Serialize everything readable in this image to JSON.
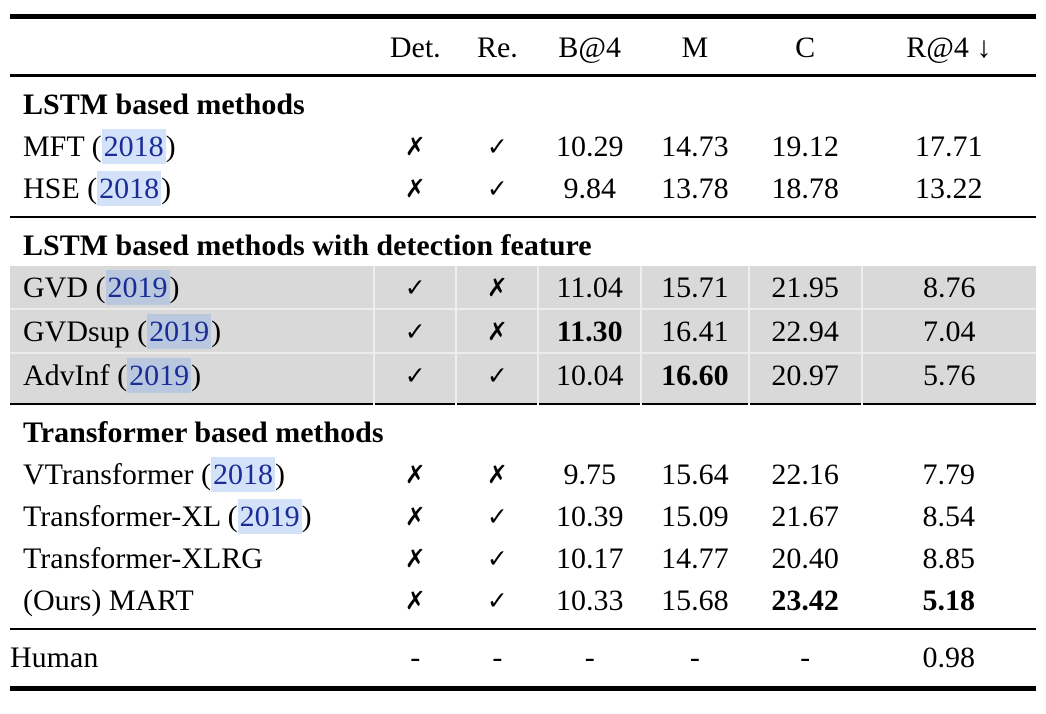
{
  "colors": {
    "link_text": "#1a2c96",
    "link_highlight": "rgba(120,165,235,0.32)",
    "row_shade": "#d9d9d9",
    "rule": "#000000"
  },
  "table": {
    "header": {
      "method": "",
      "det": "Det.",
      "re": "Re.",
      "b4": "B@4",
      "m": "M",
      "c": "C",
      "r4": "R@4 ↓"
    },
    "glyphs": {
      "yes": "✓",
      "no": "✗"
    },
    "sections": [
      {
        "title": "LSTM based methods",
        "shaded": false,
        "rows": [
          {
            "name": "MFT",
            "cite_year": "2018",
            "det": false,
            "re": true,
            "values": [
              "10.29",
              "14.73",
              "19.12",
              "17.71"
            ],
            "bold": [
              false,
              false,
              false,
              false
            ]
          },
          {
            "name": "HSE",
            "cite_year": "2018",
            "det": false,
            "re": true,
            "values": [
              "9.84",
              "13.78",
              "18.78",
              "13.22"
            ],
            "bold": [
              false,
              false,
              false,
              false
            ]
          }
        ]
      },
      {
        "title": "LSTM based methods with detection feature",
        "shaded": true,
        "rows": [
          {
            "name": "GVD",
            "cite_year": "2019",
            "det": true,
            "re": false,
            "values": [
              "11.04",
              "15.71",
              "21.95",
              "8.76"
            ],
            "bold": [
              false,
              false,
              false,
              false
            ]
          },
          {
            "name": "GVDsup",
            "cite_year": "2019",
            "det": true,
            "re": false,
            "values": [
              "11.30",
              "16.41",
              "22.94",
              "7.04"
            ],
            "bold": [
              true,
              false,
              false,
              false
            ]
          },
          {
            "name": "AdvInf",
            "cite_year": "2019",
            "det": true,
            "re": true,
            "values": [
              "10.04",
              "16.60",
              "20.97",
              "5.76"
            ],
            "bold": [
              false,
              true,
              false,
              false
            ]
          }
        ]
      },
      {
        "title": "Transformer based methods",
        "shaded": false,
        "rows": [
          {
            "name": "VTransformer",
            "cite_year": "2018",
            "det": false,
            "re": false,
            "values": [
              "9.75",
              "15.64",
              "22.16",
              "7.79"
            ],
            "bold": [
              false,
              false,
              false,
              false
            ]
          },
          {
            "name": "Transformer-XL",
            "cite_year": "2019",
            "det": false,
            "re": true,
            "values": [
              "10.39",
              "15.09",
              "21.67",
              "8.54"
            ],
            "bold": [
              false,
              false,
              false,
              false
            ]
          },
          {
            "name": "Transformer-XLRG",
            "cite_year": null,
            "det": false,
            "re": true,
            "values": [
              "10.17",
              "14.77",
              "20.40",
              "8.85"
            ],
            "bold": [
              false,
              false,
              false,
              false
            ]
          },
          {
            "name": "(Ours) MART",
            "cite_year": null,
            "det": false,
            "re": true,
            "values": [
              "10.33",
              "15.68",
              "23.42",
              "5.18"
            ],
            "bold": [
              false,
              false,
              true,
              true
            ]
          }
        ]
      }
    ],
    "footer": {
      "name": "Human",
      "det": "-",
      "re": "-",
      "values": [
        "-",
        "-",
        "-",
        "0.98"
      ],
      "bold": [
        false,
        false,
        false,
        false
      ]
    }
  }
}
